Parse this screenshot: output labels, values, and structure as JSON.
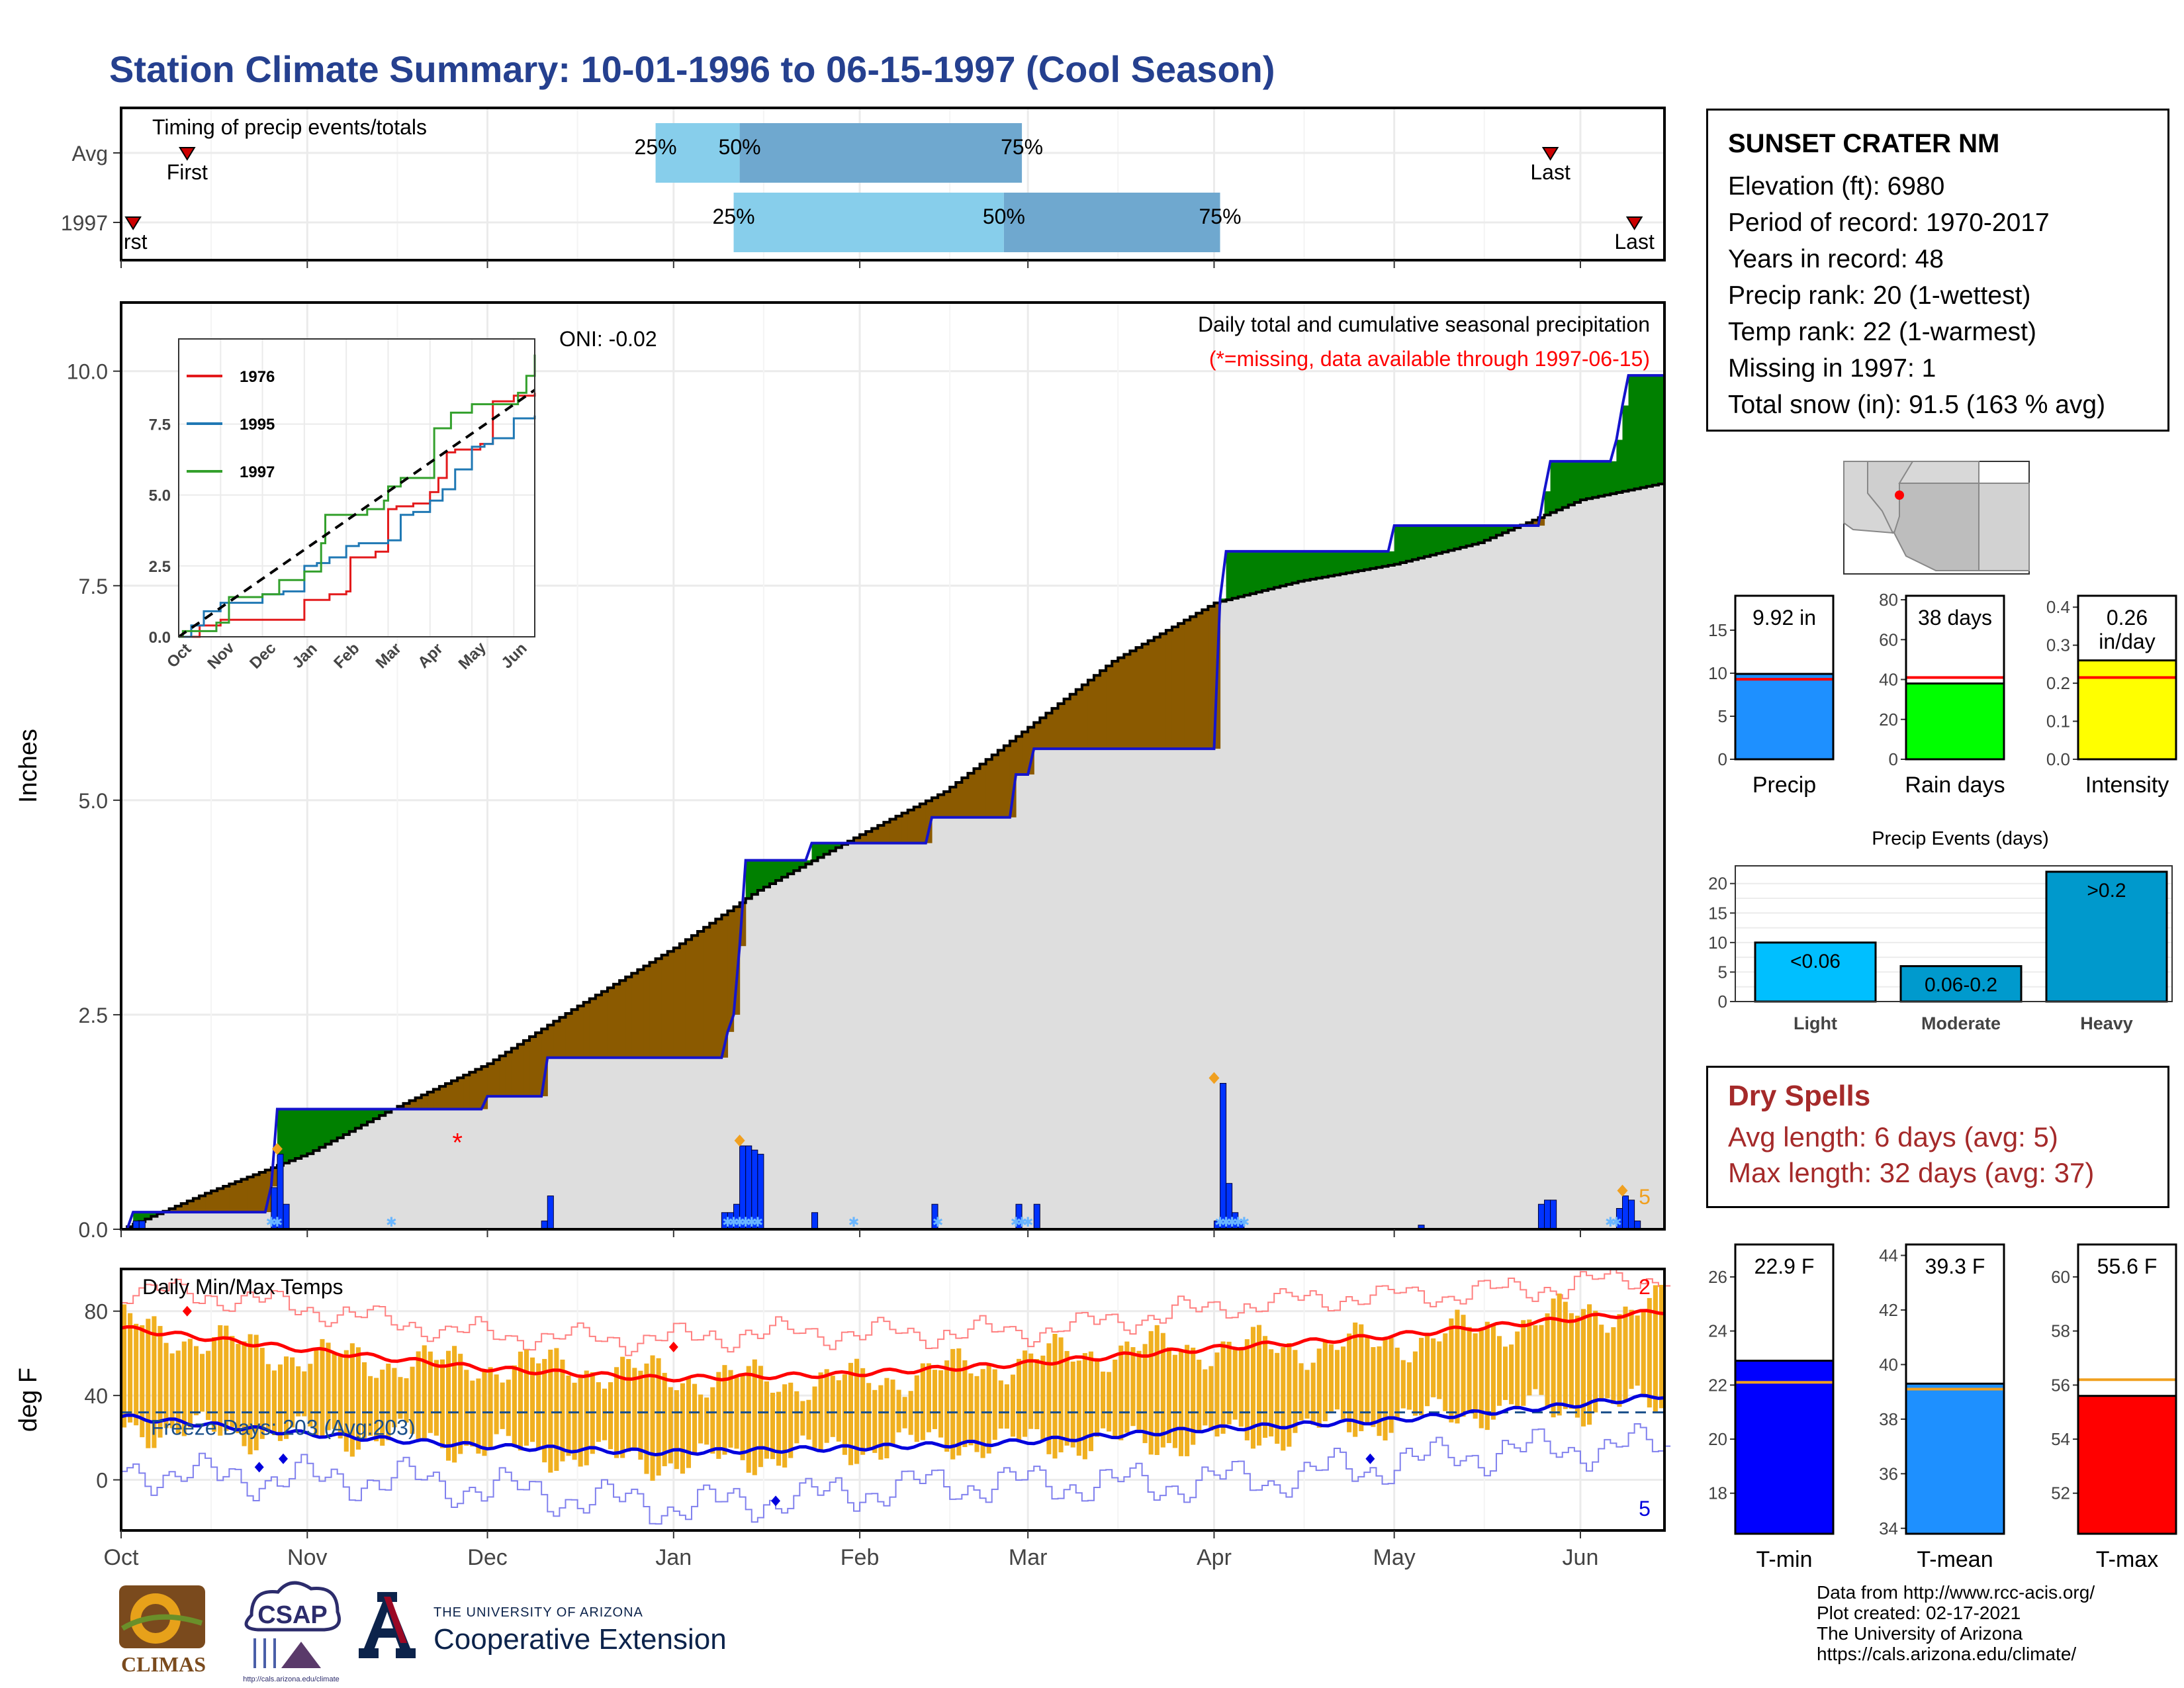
{
  "title": "Station Climate Summary: 10-01-1996 to 06-15-1997 (Cool Season)",
  "station": {
    "name": "SUNSET CRATER NM",
    "lines": [
      "Elevation (ft): 6980",
      "Period of record: 1970-2017",
      "Years in record: 48",
      "Precip rank: 20 (1-wettest)",
      "Temp rank: 22 (1-warmest)",
      "Missing in 1997: 1",
      "Total snow (in): 91.5 (163 % avg)"
    ]
  },
  "dry_spells": {
    "title": "Dry Spells",
    "avg_length": "Avg length: 6 days (avg: 5)",
    "max_length": "Max length: 32 days (avg: 37)"
  },
  "credits": [
    "Data from http://www.rcc-acis.org/",
    "Plot created: 02-17-2021",
    "The University of Arizona",
    "https://cals.arizona.edu/climate/"
  ],
  "logos": {
    "climas": "CLIMAS",
    "csap": "CSAP",
    "csap_url": "http://cals.arizona.edu/climate",
    "ua_small": "THE UNIVERSITY OF ARIZONA",
    "ua_big": "Cooperative Extension"
  },
  "colors": {
    "title": "#25408f",
    "cum_avg": "#dedede",
    "cum_above": "#008000",
    "cum_below": "#8b5a00",
    "daily_bar": "#0033ff",
    "avg_line": "#ff0000",
    "dry_spell": "#a52a2a",
    "temp_bar": "#f0b020",
    "tmax_line": "#ff0000",
    "tmin_line": "#0000dd",
    "pct25": "#87ceeb",
    "pct50": "#6fa8cf"
  },
  "chart_data": [
    {
      "id": "timing",
      "type": "bar",
      "title": "Timing of precip events/totals",
      "rows": [
        {
          "label": "Avg",
          "first": "1996-10-12",
          "p25": "1996-12-29",
          "p50": "1997-01-12",
          "p75": "1997-02-28",
          "last": "1997-05-27",
          "first_label": "First",
          "last_label": "Last",
          "p25_label": "25%",
          "p50_label": "50%",
          "p75_label": "75%"
        },
        {
          "label": "1997",
          "first": "1996-10-03",
          "p25": "1997-01-11",
          "p50": "1997-02-25",
          "p75": "1997-04-02",
          "last": "1997-06-10",
          "first_label": "irst",
          "last_label": "Last",
          "p25_label": "25%",
          "p50_label": "50%",
          "p75_label": "75%"
        }
      ]
    },
    {
      "id": "cumulative_precip",
      "type": "area",
      "title": "Daily total and cumulative seasonal precipitation",
      "subtitle": "(*=missing, data available through 1997-06-15)",
      "ylabel": "Inches",
      "ylim": [
        0,
        10.8
      ],
      "yticks": [
        0.0,
        2.5,
        5.0,
        7.5,
        10.0
      ],
      "ytick_labels": [
        "0.0",
        "2.5",
        "5.0",
        "7.5",
        "10.0"
      ],
      "oni": "ONI: -0.02",
      "avg_curve": {
        "x": [
          "1996-10-01",
          "1996-10-15",
          "1996-11-01",
          "1996-11-15",
          "1996-12-01",
          "1996-12-15",
          "1997-01-01",
          "1997-01-15",
          "1997-02-01",
          "1997-02-15",
          "1997-03-01",
          "1997-03-15",
          "1997-04-01",
          "1997-04-15",
          "1997-05-01",
          "1997-05-15",
          "1997-06-01",
          "1997-06-15"
        ],
        "y": [
          0.0,
          0.42,
          0.88,
          1.4,
          1.93,
          2.56,
          3.28,
          3.95,
          4.6,
          5.1,
          5.85,
          6.62,
          7.3,
          7.55,
          7.75,
          8.0,
          8.5,
          8.7
        ]
      },
      "season_curve": {
        "x": [
          "1996-10-01",
          "1996-10-03",
          "1996-10-04",
          "1996-10-19",
          "1996-10-26",
          "1996-10-27",
          "1996-11-15",
          "1996-11-16",
          "1996-12-01",
          "1996-12-10",
          "1996-12-11",
          "1997-01-09",
          "1997-01-10",
          "1997-01-11",
          "1997-01-12",
          "1997-01-13",
          "1997-01-14",
          "1997-01-23",
          "1997-01-24",
          "1997-02-12",
          "1997-02-13",
          "1997-02-26",
          "1997-02-27",
          "1997-03-01",
          "1997-03-02",
          "1997-03-20",
          "1997-04-01",
          "1997-04-02",
          "1997-04-03",
          "1997-04-15",
          "1997-04-16",
          "1997-05-01",
          "1997-05-25",
          "1997-05-26",
          "1997-05-27",
          "1997-06-06",
          "1997-06-07",
          "1997-06-08",
          "1997-06-09",
          "1997-06-15"
        ],
        "y": [
          0.0,
          0.2,
          0.2,
          0.2,
          0.5,
          1.4,
          1.4,
          1.4,
          1.55,
          1.55,
          2.0,
          2.0,
          2.3,
          2.5,
          3.3,
          4.3,
          4.3,
          4.3,
          4.5,
          4.5,
          4.8,
          4.8,
          5.3,
          5.3,
          5.6,
          5.6,
          5.6,
          7.35,
          7.9,
          7.9,
          7.9,
          8.2,
          8.2,
          8.6,
          8.95,
          8.95,
          9.2,
          9.6,
          9.95,
          9.95
        ]
      },
      "daily_precip_scale_max": 5,
      "daily_precip": {
        "x": [
          "1996-10-03",
          "1996-10-04",
          "1996-10-26",
          "1996-10-27",
          "1996-10-28",
          "1996-12-10",
          "1996-12-11",
          "1997-01-09",
          "1997-01-10",
          "1997-01-11",
          "1997-01-12",
          "1997-01-13",
          "1997-01-14",
          "1997-01-15",
          "1997-01-24",
          "1997-02-13",
          "1997-02-27",
          "1997-03-02",
          "1997-04-01",
          "1997-04-02",
          "1997-04-03",
          "1997-04-04",
          "1997-04-05",
          "1997-05-05",
          "1997-05-25",
          "1997-05-26",
          "1997-05-27",
          "1997-06-07",
          "1997-06-08",
          "1997-06-09",
          "1997-06-10"
        ],
        "y": [
          0.1,
          0.1,
          0.5,
          0.9,
          0.3,
          0.1,
          0.4,
          0.2,
          0.2,
          0.3,
          1.0,
          1.0,
          0.95,
          0.9,
          0.2,
          0.3,
          0.3,
          0.3,
          0.1,
          1.75,
          0.55,
          0.2,
          0.1,
          0.05,
          0.3,
          0.35,
          0.35,
          0.25,
          0.4,
          0.35,
          0.1
        ]
      },
      "missing_day": "1996-11-26",
      "max_days_marker": "5",
      "inset": {
        "type": "line",
        "xticks": [
          "Oct",
          "Nov",
          "Dec",
          "Jan",
          "Feb",
          "Mar",
          "Apr",
          "May",
          "Jun"
        ],
        "yticks": [
          "0.0",
          "2.5",
          "5.0",
          "7.5"
        ],
        "ylim": [
          0,
          10.5
        ],
        "series": [
          {
            "name": "1976",
            "color": "#e31a1c",
            "x": [
              0,
              0.5,
              1.0,
              1.3,
              2.0,
              2.7,
              3.0,
              3.3,
              3.6,
              4.0,
              4.1,
              4.4,
              4.7,
              5.0,
              5.2,
              5.6,
              6.0,
              6.2,
              6.4,
              6.6,
              7.2,
              7.5,
              8.0,
              8.5
            ],
            "y": [
              0,
              0.4,
              0.6,
              0.6,
              0.6,
              0.6,
              1.3,
              1.3,
              1.5,
              1.6,
              2.8,
              2.8,
              3.0,
              4.5,
              4.6,
              4.7,
              5.1,
              5.6,
              6.5,
              6.6,
              6.8,
              8.3,
              8.5,
              8.6
            ]
          },
          {
            "name": "1995",
            "color": "#1f78b4",
            "x": [
              0,
              0.3,
              0.6,
              1.0,
              2.0,
              2.5,
              3.0,
              3.3,
              3.6,
              4.0,
              4.3,
              4.7,
              5.0,
              5.3,
              5.6,
              6.0,
              6.3,
              6.6,
              7.0,
              7.3,
              7.5,
              8.0,
              8.5
            ],
            "y": [
              0,
              0.4,
              0.9,
              1.2,
              1.5,
              1.6,
              2.5,
              2.6,
              2.8,
              3.2,
              3.3,
              3.3,
              3.4,
              4.3,
              4.4,
              4.8,
              5.2,
              5.9,
              6.7,
              6.8,
              7.0,
              7.7,
              7.8
            ]
          },
          {
            "name": "1997",
            "color": "#33a02c",
            "x": [
              0,
              0.1,
              0.9,
              1.2,
              2.0,
              2.4,
              3.0,
              3.4,
              3.5,
              4.0,
              4.5,
              4.9,
              5.0,
              5.3,
              5.5,
              6.0,
              6.1,
              6.5,
              7.0,
              7.6,
              8.1,
              8.3,
              8.5
            ],
            "y": [
              0,
              0.2,
              0.5,
              1.4,
              1.5,
              2.0,
              2.3,
              3.3,
              4.3,
              4.3,
              4.5,
              4.8,
              5.3,
              5.6,
              5.6,
              5.6,
              7.35,
              7.9,
              8.2,
              8.2,
              8.6,
              9.2,
              9.95
            ]
          },
          {
            "name": "",
            "color": "#000000",
            "dashed": true,
            "x": [
              0,
              8.5
            ],
            "y": [
              0,
              8.7
            ]
          }
        ]
      }
    },
    {
      "id": "temps",
      "type": "bar",
      "title": "Daily Min/Max Temps",
      "ylabel": "deg F",
      "ylim": [
        -24,
        100
      ],
      "yticks": [
        0,
        40,
        80
      ],
      "ytick_labels": [
        "0",
        "40",
        "80"
      ],
      "freeze_line": 32,
      "freeze_label": "Freeze Days: 203 (Avg:203)",
      "tmax_record_count": "2",
      "tmin_record_count": "5",
      "xticks": [
        "Oct",
        "Nov",
        "Dec",
        "Jan",
        "Feb",
        "Mar",
        "Apr",
        "May",
        "Jun"
      ],
      "tmax_norm": {
        "x": [
          0,
          30,
          60,
          90,
          120,
          150,
          180,
          210,
          240,
          257
        ],
        "y": [
          72,
          62,
          53,
          48,
          50,
          55,
          62,
          68,
          76,
          80
        ]
      },
      "tmin_norm": {
        "x": [
          0,
          30,
          60,
          90,
          120,
          150,
          180,
          210,
          240,
          257
        ],
        "y": [
          30,
          22,
          16,
          13,
          15,
          18,
          24,
          28,
          35,
          40
        ]
      },
      "tmax_record_marks": {
        "x": [
          11,
          92
        ],
        "y": [
          80,
          63
        ]
      },
      "tmin_record_marks": {
        "x": [
          23,
          27,
          109,
          208
        ],
        "y": [
          6,
          10,
          -10,
          10
        ]
      }
    },
    {
      "id": "precip_bars",
      "type": "bar",
      "categories": [
        "Precip",
        "Rain days",
        "Intensity"
      ],
      "value_labels": [
        "9.92 in",
        "38 days",
        "0.26\nin/day"
      ],
      "values": [
        9.92,
        38,
        0.26
      ],
      "avg": [
        9.3,
        41,
        0.215
      ],
      "ylim": [
        [
          0,
          19
        ],
        [
          0,
          82
        ],
        [
          0,
          0.43
        ]
      ],
      "yticks": [
        [
          0,
          5,
          10,
          15
        ],
        [
          0,
          20,
          40,
          60,
          80
        ],
        [
          0.0,
          0.1,
          0.2,
          0.3,
          0.4
        ]
      ],
      "colors": [
        "#1e90ff",
        "#00ff00",
        "#ffff00"
      ]
    },
    {
      "id": "precip_events",
      "type": "bar",
      "title": "Precip Events (days)",
      "categories": [
        "Light",
        "Moderate",
        "Heavy"
      ],
      "value_labels": [
        "<0.06",
        "0.06-0.2",
        ">0.2"
      ],
      "values": [
        10,
        6,
        22
      ],
      "ylim": [
        0,
        23
      ],
      "yticks": [
        0,
        5,
        10,
        15,
        20
      ],
      "colors": [
        "#00bfff",
        "#009acd",
        "#0099cc"
      ]
    },
    {
      "id": "temp_bars",
      "type": "bar",
      "categories": [
        "T-min",
        "T-mean",
        "T-max"
      ],
      "value_labels": [
        "22.9 F",
        "39.3 F",
        "55.6 F"
      ],
      "values": [
        22.9,
        39.3,
        55.6
      ],
      "avg": [
        22.1,
        39.1,
        56.2
      ],
      "ylim": [
        [
          16.5,
          27.2
        ],
        [
          33.8,
          44.4
        ],
        [
          50.5,
          61.2
        ]
      ],
      "yticks": [
        [
          18,
          20,
          22,
          24,
          26
        ],
        [
          34,
          36,
          38,
          40,
          42,
          44
        ],
        [
          52,
          54,
          56,
          58,
          60
        ]
      ],
      "colors": [
        "#0000ff",
        "#1e90ff",
        "#ff0000"
      ]
    }
  ]
}
